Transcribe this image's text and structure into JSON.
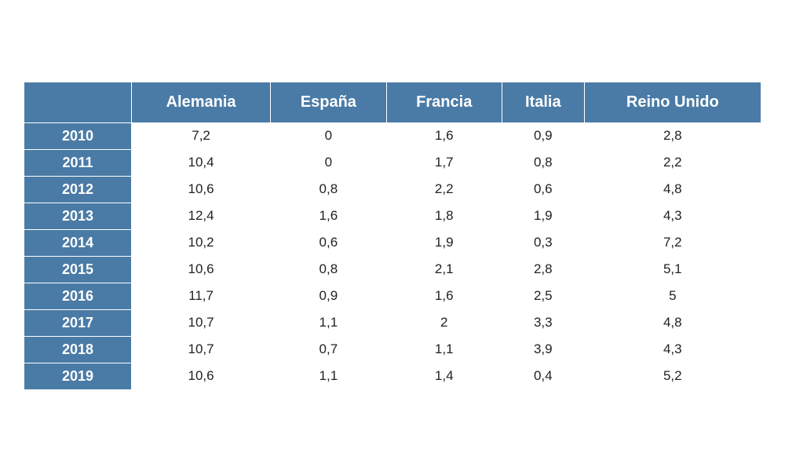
{
  "table": {
    "type": "table",
    "header_bg": "#4a7ba6",
    "header_text_color": "#ffffff",
    "cell_bg": "#ffffff",
    "cell_text_color": "#222222",
    "border_color": "#ffffff",
    "header_fontsize": 20,
    "year_fontsize": 18,
    "cell_fontsize": 17,
    "columns": [
      "",
      "Alemania",
      "España",
      "Francia",
      "Italia",
      "Reino Unido"
    ],
    "col_widths_pct": [
      13,
      17,
      17,
      17,
      17,
      19
    ],
    "rows": [
      {
        "year": "2010",
        "values": [
          "7,2",
          "0",
          "1,6",
          "0,9",
          "2,8"
        ]
      },
      {
        "year": "2011",
        "values": [
          "10,4",
          "0",
          "1,7",
          "0,8",
          "2,2"
        ]
      },
      {
        "year": "2012",
        "values": [
          "10,6",
          "0,8",
          "2,2",
          "0,6",
          "4,8"
        ]
      },
      {
        "year": "2013",
        "values": [
          "12,4",
          "1,6",
          "1,8",
          "1,9",
          "4,3"
        ]
      },
      {
        "year": "2014",
        "values": [
          "10,2",
          "0,6",
          "1,9",
          "0,3",
          "7,2"
        ]
      },
      {
        "year": "2015",
        "values": [
          "10,6",
          "0,8",
          "2,1",
          "2,8",
          "5,1"
        ]
      },
      {
        "year": "2016",
        "values": [
          "11,7",
          "0,9",
          "1,6",
          "2,5",
          "5"
        ]
      },
      {
        "year": "2017",
        "values": [
          "10,7",
          "1,1",
          "2",
          "3,3",
          "4,8"
        ]
      },
      {
        "year": "2018",
        "values": [
          "10,7",
          "0,7",
          "1,1",
          "3,9",
          "4,3"
        ]
      },
      {
        "year": "2019",
        "values": [
          "10,6",
          "1,1",
          "1,4",
          "0,4",
          "5,2"
        ]
      }
    ]
  }
}
